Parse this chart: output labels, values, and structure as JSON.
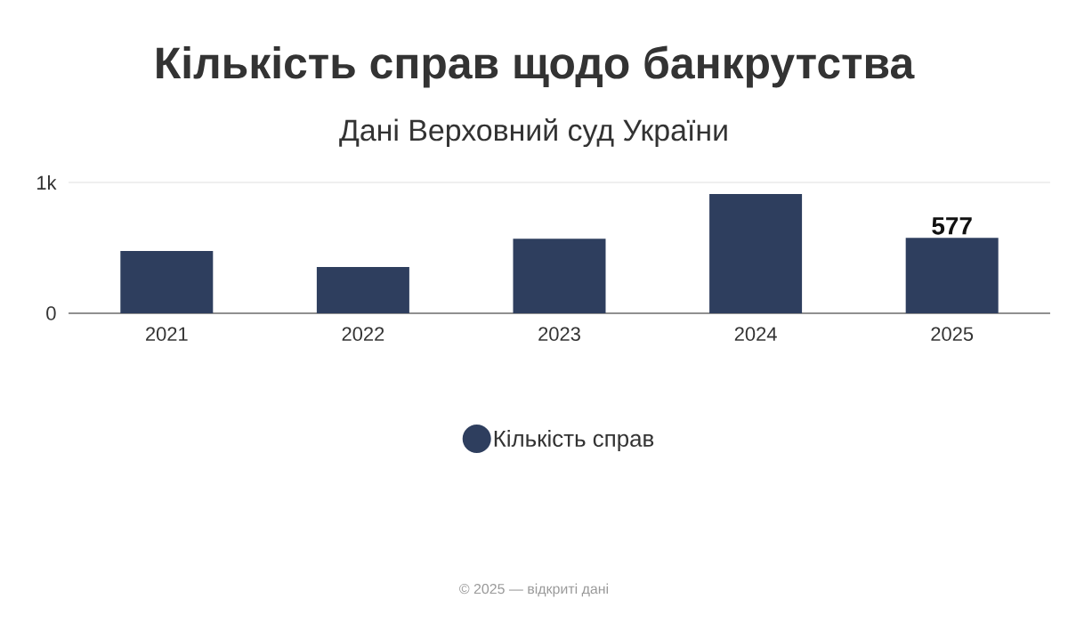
{
  "chart_data": {
    "type": "bar",
    "title": "Кількість справ щодо банкрутства",
    "subtitle": "Дані Верховний суд України",
    "categories": [
      "2021",
      "2022",
      "2023",
      "2024",
      "2025"
    ],
    "series": [
      {
        "name": "Кількість справ",
        "color": "#2e3e5e",
        "values": [
          476,
          354,
          570,
          912,
          577
        ],
        "value_labels": [
          null,
          null,
          null,
          null,
          "577"
        ]
      }
    ],
    "ylim": [
      0,
      1000
    ],
    "yticks": [
      0,
      {
        "value": 1000,
        "label": "1k"
      }
    ],
    "grid": "y",
    "legend": "bottom",
    "annotations": [
      "© 2025 — відкриті дані"
    ]
  }
}
